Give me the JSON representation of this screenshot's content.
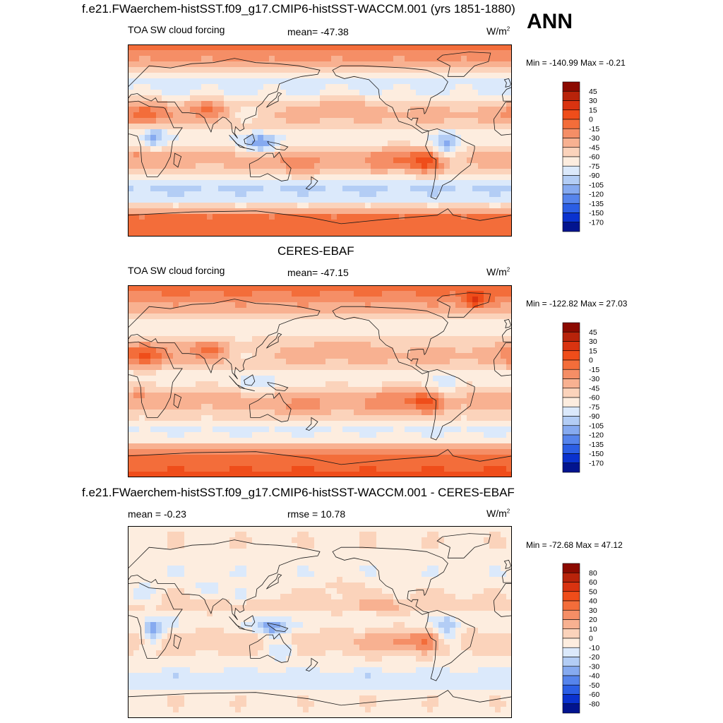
{
  "header": {
    "title": "f.e21.FWaerchem-histSST.f09_g17.CMIP6-histSST-WACCM.001 (yrs 1851-1880)",
    "season": "ANN"
  },
  "chart_data": [
    {
      "type": "heatmap",
      "kind": "global-map",
      "title": "",
      "variable": "TOA SW cloud forcing",
      "stat": "mean= -47.38",
      "units_base": "W/m",
      "units_exp": "2",
      "minmax": "Min = -140.99 Max =  -0.21",
      "mean": -47.38,
      "min": -140.99,
      "max": -0.21,
      "colorbar_labels": [
        "45",
        "30",
        "15",
        "0",
        "-15",
        "-30",
        "-45",
        "-60",
        "-75",
        "-90",
        "-105",
        "-120",
        "-135",
        "-150",
        "-170"
      ],
      "colorbar_colors": [
        "#8c0a00",
        "#b8230a",
        "#d93310",
        "#ef4d1a",
        "#f36d3a",
        "#f58e66",
        "#f8b191",
        "#fbd3bb",
        "#fdeddf",
        "#dbe9fb",
        "#b3cdf5",
        "#86aaf0",
        "#5684ec",
        "#2b5ee5",
        "#0a32cf",
        "#02148f"
      ],
      "field": "model",
      "lat_range": [
        -90,
        90
      ],
      "lon_range": [
        0,
        360
      ]
    },
    {
      "type": "heatmap",
      "kind": "global-map",
      "title": "CERES-EBAF",
      "variable": "TOA SW cloud forcing",
      "stat": "mean= -47.15",
      "units_base": "W/m",
      "units_exp": "2",
      "minmax": "Min = -122.82 Max =  27.03",
      "mean": -47.15,
      "min": -122.82,
      "max": 27.03,
      "colorbar_labels": [
        "45",
        "30",
        "15",
        "0",
        "-15",
        "-30",
        "-45",
        "-60",
        "-75",
        "-90",
        "-105",
        "-120",
        "-135",
        "-150",
        "-170"
      ],
      "colorbar_colors": [
        "#8c0a00",
        "#b8230a",
        "#d93310",
        "#ef4d1a",
        "#f36d3a",
        "#f58e66",
        "#f8b191",
        "#fbd3bb",
        "#fdeddf",
        "#dbe9fb",
        "#b3cdf5",
        "#86aaf0",
        "#5684ec",
        "#2b5ee5",
        "#0a32cf",
        "#02148f"
      ],
      "field": "obs",
      "lat_range": [
        -90,
        90
      ],
      "lon_range": [
        0,
        360
      ]
    },
    {
      "type": "heatmap",
      "kind": "global-map",
      "title": "f.e21.FWaerchem-histSST.f09_g17.CMIP6-histSST-WACCM.001 - CERES-EBAF",
      "variable": "mean =  -0.23",
      "stat": "rmse =  10.78",
      "units_base": "W/m",
      "units_exp": "2",
      "minmax": "Min = -72.68 Max =  47.12",
      "mean": -0.23,
      "rmse": 10.78,
      "min": -72.68,
      "max": 47.12,
      "colorbar_labels": [
        "80",
        "60",
        "50",
        "40",
        "30",
        "20",
        "10",
        "0",
        "-10",
        "-20",
        "-30",
        "-40",
        "-50",
        "-60",
        "-80"
      ],
      "colorbar_colors": [
        "#8c0a00",
        "#b8230a",
        "#d93310",
        "#ef4d1a",
        "#f36d3a",
        "#f58e66",
        "#f8b191",
        "#fbd3bb",
        "#fdeddf",
        "#dbe9fb",
        "#b3cdf5",
        "#86aaf0",
        "#5684ec",
        "#2b5ee5",
        "#0a32cf",
        "#02148f"
      ],
      "field": "diff",
      "lat_range": [
        -90,
        90
      ],
      "lon_range": [
        0,
        360
      ]
    }
  ]
}
